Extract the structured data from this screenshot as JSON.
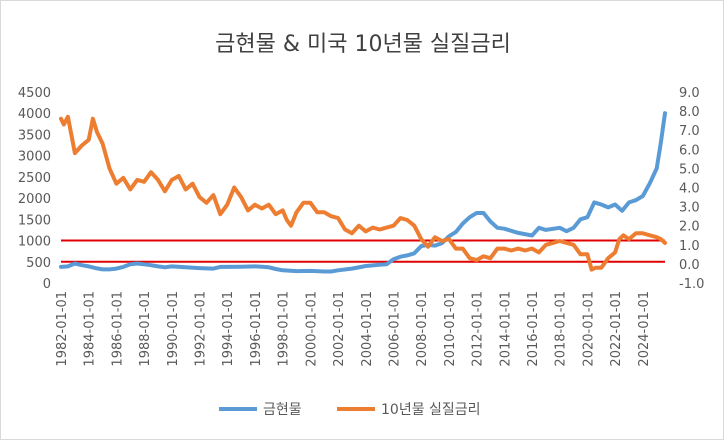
{
  "chart_data": {
    "type": "line",
    "title": "금현물 & 미국 10년물 실질금리",
    "x_tick_labels": [
      "1982-01-01",
      "1984-01-01",
      "1986-01-01",
      "1988-01-01",
      "1990-01-01",
      "1992-01-01",
      "1994-01-01",
      "1996-01-01",
      "1998-01-01",
      "2000-01-01",
      "2002-01-01",
      "2004-01-01",
      "2006-01-01",
      "2008-01-01",
      "2010-01-01",
      "2012-01-01",
      "2014-01-01",
      "2016-01-01",
      "2018-01-01",
      "2020-01-01",
      "2022-01-01",
      "2024-01-01"
    ],
    "y_left": {
      "ylim": [
        0,
        4500
      ],
      "ticks": [
        "0",
        "500",
        "1000",
        "1500",
        "2000",
        "2500",
        "3000",
        "3500",
        "4000",
        "4500"
      ]
    },
    "y_right": {
      "ylim": [
        -1.0,
        9.0
      ],
      "ticks": [
        "-1.0",
        "0.0",
        "1.0",
        "2.0",
        "3.0",
        "4.0",
        "5.0",
        "6.0",
        "7.0",
        "8.0",
        "9.0"
      ]
    },
    "reference_lines": [
      {
        "axis": "left",
        "value": 1000,
        "color": "#e00000"
      },
      {
        "axis": "left",
        "value": 500,
        "color": "#e00000"
      }
    ],
    "series": [
      {
        "name": "금현물",
        "axis": "left",
        "color": "#5b9bd5",
        "x": [
          1982.0,
          1982.5,
          1983.0,
          1983.5,
          1984.0,
          1984.5,
          1985.0,
          1985.5,
          1986.0,
          1986.5,
          1987.0,
          1987.5,
          1988.0,
          1988.5,
          1989.0,
          1989.5,
          1990.0,
          1991.0,
          1992.0,
          1993.0,
          1993.5,
          1994.0,
          1995.0,
          1996.0,
          1996.5,
          1997.0,
          1997.5,
          1998.0,
          1999.0,
          2000.0,
          2001.0,
          2001.5,
          2002.0,
          2003.0,
          2004.0,
          2005.0,
          2005.5,
          2006.0,
          2006.5,
          2007.0,
          2007.5,
          2008.0,
          2008.5,
          2009.0,
          2009.5,
          2010.0,
          2010.5,
          2011.0,
          2011.5,
          2012.0,
          2012.5,
          2013.0,
          2013.5,
          2014.0,
          2015.0,
          2016.0,
          2016.5,
          2017.0,
          2018.0,
          2018.5,
          2019.0,
          2019.5,
          2020.0,
          2020.5,
          2021.0,
          2021.5,
          2022.0,
          2022.5,
          2023.0,
          2023.5,
          2024.0,
          2024.5,
          2025.0,
          2025.3,
          2025.6
        ],
        "values": [
          380,
          390,
          460,
          420,
          390,
          350,
          320,
          320,
          340,
          380,
          440,
          460,
          440,
          420,
          390,
          370,
          390,
          370,
          350,
          340,
          380,
          380,
          385,
          390,
          385,
          370,
          330,
          300,
          280,
          285,
          270,
          270,
          300,
          340,
          400,
          430,
          440,
          560,
          620,
          650,
          700,
          870,
          900,
          880,
          940,
          1100,
          1200,
          1400,
          1550,
          1650,
          1650,
          1450,
          1300,
          1280,
          1180,
          1120,
          1300,
          1250,
          1300,
          1220,
          1300,
          1500,
          1550,
          1900,
          1850,
          1780,
          1850,
          1700,
          1900,
          1950,
          2050,
          2350,
          2700,
          3300,
          4000
        ]
      },
      {
        "name": "10년물 실질금리",
        "axis": "right",
        "color": "#ed7d31",
        "x": [
          1982.0,
          1982.2,
          1982.5,
          1983.0,
          1983.5,
          1984.0,
          1984.3,
          1984.6,
          1985.0,
          1985.5,
          1986.0,
          1986.5,
          1987.0,
          1987.5,
          1988.0,
          1988.5,
          1989.0,
          1989.5,
          1990.0,
          1990.5,
          1991.0,
          1991.5,
          1992.0,
          1992.5,
          1993.0,
          1993.5,
          1994.0,
          1994.5,
          1995.0,
          1995.5,
          1996.0,
          1996.5,
          1997.0,
          1997.5,
          1998.0,
          1998.3,
          1998.6,
          1999.0,
          1999.5,
          2000.0,
          2000.5,
          2001.0,
          2001.5,
          2002.0,
          2002.5,
          2003.0,
          2003.5,
          2004.0,
          2004.5,
          2005.0,
          2005.5,
          2006.0,
          2006.5,
          2007.0,
          2007.5,
          2008.0,
          2008.5,
          2009.0,
          2009.5,
          2010.0,
          2010.5,
          2011.0,
          2011.5,
          2012.0,
          2012.5,
          2013.0,
          2013.5,
          2014.0,
          2014.5,
          2015.0,
          2015.5,
          2016.0,
          2016.5,
          2017.0,
          2017.5,
          2018.0,
          2018.5,
          2019.0,
          2019.5,
          2020.0,
          2020.3,
          2020.6,
          2021.0,
          2021.5,
          2022.0,
          2022.3,
          2022.6,
          2023.0,
          2023.5,
          2024.0,
          2024.5,
          2025.0,
          2025.3,
          2025.6
        ],
        "values": [
          7.6,
          7.3,
          7.7,
          5.8,
          6.2,
          6.5,
          7.6,
          6.9,
          6.3,
          5.0,
          4.2,
          4.5,
          3.9,
          4.4,
          4.3,
          4.8,
          4.4,
          3.8,
          4.4,
          4.6,
          3.9,
          4.2,
          3.5,
          3.2,
          3.6,
          2.6,
          3.1,
          4.0,
          3.5,
          2.8,
          3.1,
          2.9,
          3.1,
          2.6,
          2.8,
          2.3,
          2.0,
          2.7,
          3.2,
          3.2,
          2.7,
          2.7,
          2.5,
          2.4,
          1.8,
          1.6,
          2.0,
          1.7,
          1.9,
          1.8,
          1.9,
          2.0,
          2.4,
          2.3,
          2.0,
          1.3,
          0.9,
          1.4,
          1.2,
          1.3,
          0.8,
          0.8,
          0.3,
          0.2,
          0.4,
          0.3,
          0.8,
          0.8,
          0.7,
          0.8,
          0.7,
          0.8,
          0.6,
          1.0,
          1.1,
          1.2,
          1.1,
          1.0,
          0.5,
          0.5,
          -0.3,
          -0.2,
          -0.2,
          0.3,
          0.6,
          1.3,
          1.5,
          1.3,
          1.6,
          1.6,
          1.5,
          1.4,
          1.3,
          1.1
        ]
      }
    ]
  }
}
